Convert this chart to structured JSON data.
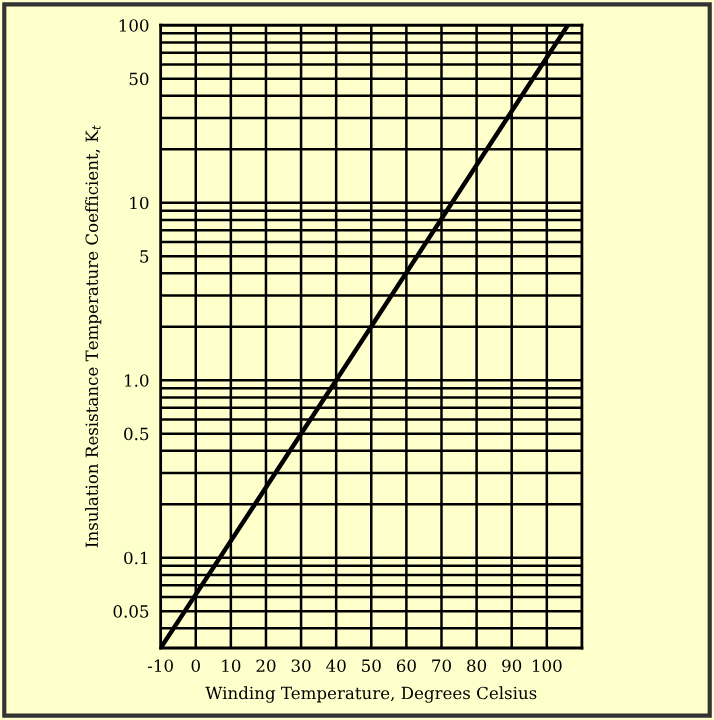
{
  "chart_data": {
    "type": "line",
    "xlabel": "Winding Temperature, Degrees Celsius",
    "ylabel": "Insulation Resistance Temperature Coefficient, K$_{t}$",
    "x": [
      -10,
      40,
      106
    ],
    "series": [
      {
        "color": "#000000",
        "values": [
          0.031,
          1.0,
          100
        ]
      }
    ],
    "log": "y",
    "grid": true,
    "marker": "none",
    "line_style": "solid",
    "xlim": [
      -10,
      110
    ],
    "xticks": [
      -10,
      0,
      10,
      20,
      30,
      40,
      50,
      60,
      70,
      80,
      90,
      100
    ],
    "ylim": [
      0.031,
      100
    ],
    "yticks": [
      0.05,
      0.1,
      0.5,
      {
        "value": 1,
        "label": "1.0"
      },
      5,
      10,
      50,
      100
    ]
  }
}
